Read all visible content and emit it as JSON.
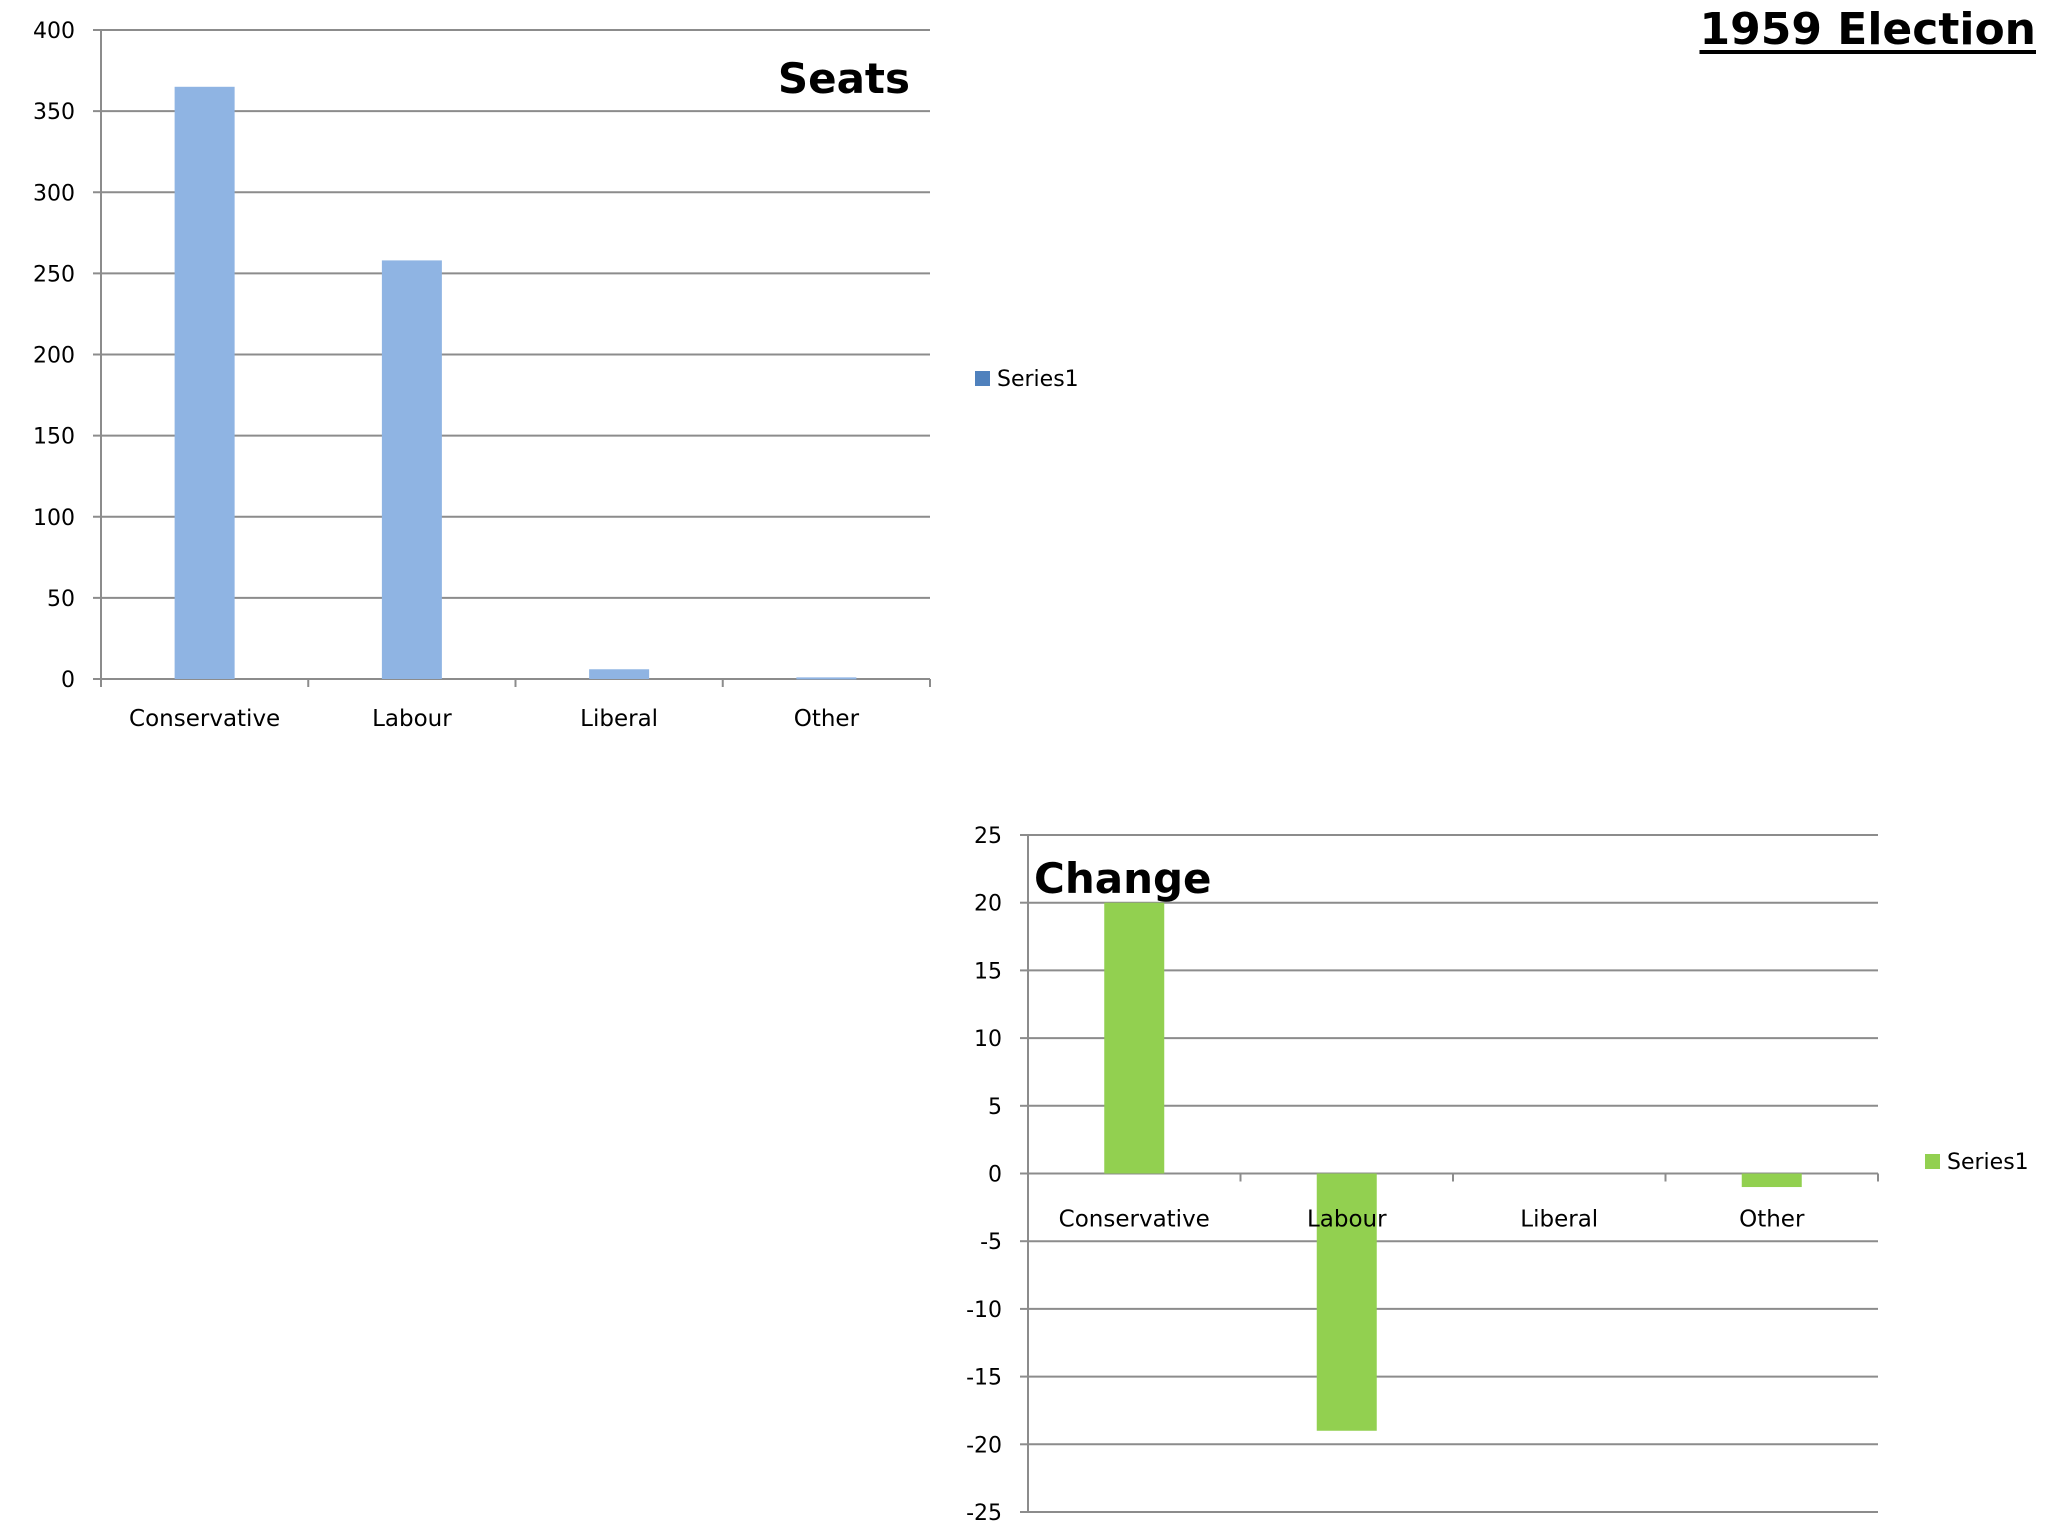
{
  "page": {
    "title": "1959 Election"
  },
  "chart_data": [
    {
      "type": "bar",
      "title": "Seats",
      "categories": [
        "Conservative",
        "Labour",
        "Liberal",
        "Other"
      ],
      "series": [
        {
          "name": "Series1",
          "values": [
            365,
            258,
            6,
            1
          ]
        }
      ],
      "ylim": [
        0,
        400
      ],
      "yticks": [
        0,
        50,
        100,
        150,
        200,
        250,
        300,
        350,
        400
      ],
      "ytick_labels": [
        "0",
        "50",
        "100",
        "150",
        "200",
        "250",
        "300",
        "350",
        "400"
      ],
      "grid": true,
      "legend": "right",
      "colors": {
        "bar": "#8fb4e3",
        "legend_swatch": "#4f81bd"
      }
    },
    {
      "type": "bar",
      "title": "Change",
      "categories": [
        "Conservative",
        "Labour",
        "Liberal",
        "Other"
      ],
      "series": [
        {
          "name": "Series1",
          "values": [
            20,
            -19,
            0,
            -1
          ]
        }
      ],
      "ylim": [
        -25,
        25
      ],
      "yticks": [
        -25,
        -20,
        -15,
        -10,
        -5,
        0,
        5,
        10,
        15,
        20,
        25
      ],
      "ytick_labels": [
        "-25",
        "-20",
        "-15",
        "-10",
        "-5",
        "0",
        "5",
        "10",
        "15",
        "20",
        "25"
      ],
      "grid": true,
      "legend": "right",
      "colors": {
        "bar": "#92d050",
        "legend_swatch": "#92d050"
      }
    }
  ]
}
